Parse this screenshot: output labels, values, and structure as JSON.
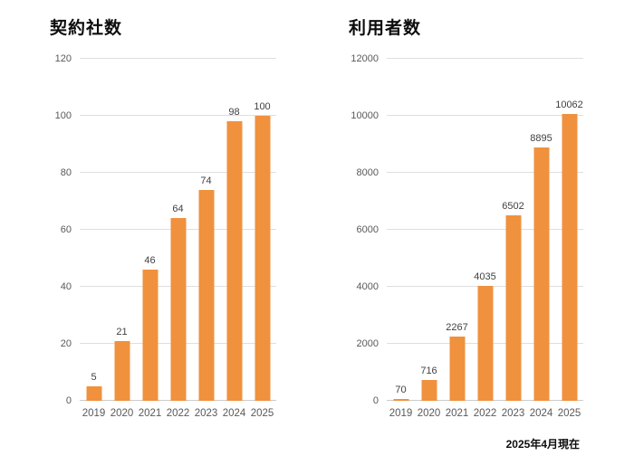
{
  "footnote": "2025年4月現在",
  "chart_data": [
    {
      "type": "bar",
      "title": "契約社数",
      "categories": [
        "2019",
        "2020",
        "2021",
        "2022",
        "2023",
        "2024",
        "2025"
      ],
      "values": [
        5,
        21,
        46,
        64,
        74,
        98,
        100
      ],
      "xlabel": "",
      "ylabel": "",
      "ylim": [
        0,
        120
      ],
      "ytick_step": 20,
      "bar_color": "#F0913E",
      "grid": true,
      "data_labels": true,
      "legend": "none"
    },
    {
      "type": "bar",
      "title": "利用者数",
      "categories": [
        "2019",
        "2020",
        "2021",
        "2022",
        "2023",
        "2024",
        "2025"
      ],
      "values": [
        70,
        716,
        2267,
        4035,
        6502,
        8895,
        10062
      ],
      "xlabel": "",
      "ylabel": "",
      "ylim": [
        0,
        12000
      ],
      "ytick_step": 2000,
      "bar_color": "#F0913E",
      "grid": true,
      "data_labels": true,
      "legend": "none"
    }
  ]
}
